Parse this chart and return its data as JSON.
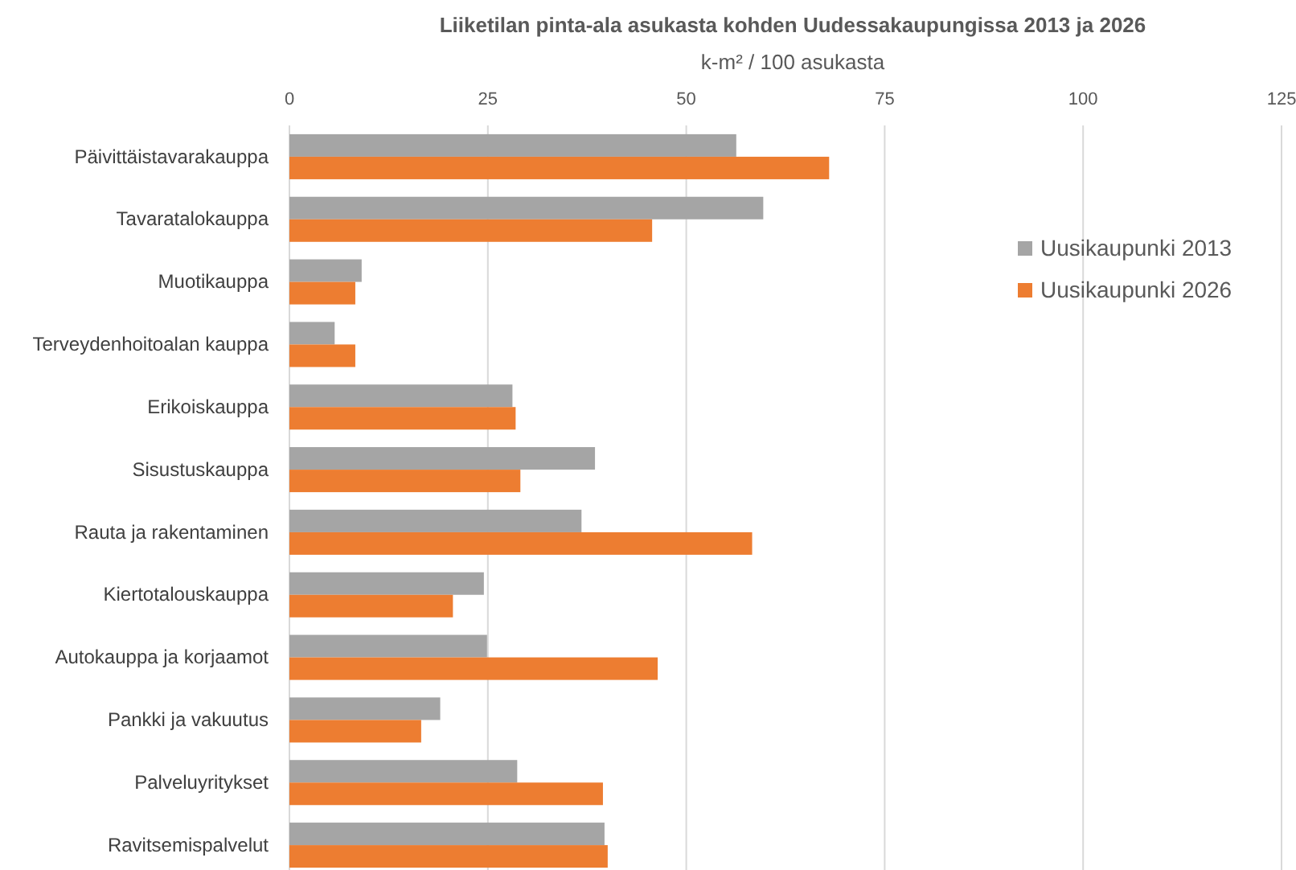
{
  "chart_data": {
    "type": "bar",
    "orientation": "horizontal",
    "title": "Liiketilan pinta-ala asukasta kohden Uudessakaupungissa 2013 ja 2026",
    "subtitle": "k-m² / 100 asukasta",
    "categories": [
      "Päivittäistavarakauppa",
      "Tavaratalokauppa",
      "Muotikauppa",
      "Terveydenhoitoalan kauppa",
      "Erikoiskauppa",
      "Sisustuskauppa",
      "Rauta ja rakentaminen",
      "Kiertotalouskauppa",
      "Autokauppa ja korjaamot",
      "Pankki ja vakuutus",
      "Palveluyritykset",
      "Ravitsemispalvelut"
    ],
    "series": [
      {
        "name": "Uusikaupunki 2013",
        "color": "#a5a5a5",
        "values": [
          56.3,
          59.7,
          9.1,
          5.7,
          28.1,
          38.5,
          36.8,
          24.5,
          24.9,
          19.0,
          28.7,
          39.7
        ]
      },
      {
        "name": "Uusikaupunki 2026",
        "color": "#ed7d31",
        "values": [
          68.0,
          45.7,
          8.3,
          8.3,
          28.5,
          29.1,
          58.3,
          20.6,
          46.4,
          16.6,
          39.5,
          40.1
        ]
      }
    ],
    "xlim": [
      0,
      125
    ],
    "xticks": [
      0,
      25,
      50,
      75,
      100,
      125
    ],
    "grid": "x",
    "legend": "right"
  }
}
